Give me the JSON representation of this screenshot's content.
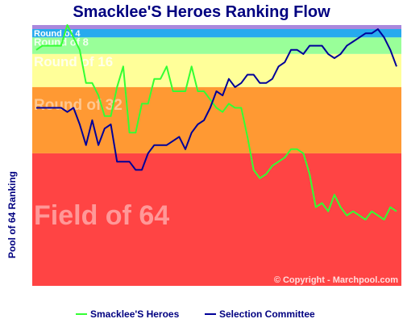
{
  "title": "Smacklee'S Heroes Ranking Flow",
  "ylabel": "Pool of 64 Ranking",
  "copyright": "© Copyright - Marchpool.com",
  "legend": [
    {
      "name": "Smacklee'S Heroes",
      "color": "#33ff33"
    },
    {
      "name": "Selection Committee",
      "color": "#000099"
    }
  ],
  "bands": [
    {
      "label": "Round of 4",
      "from": 1,
      "to": 4,
      "color": "#27aaee"
    },
    {
      "label": "Round of 8",
      "from": 4,
      "to": 8,
      "color": "#99ff99"
    },
    {
      "label": "Round of 16",
      "from": 8,
      "to": 16,
      "color": "#ffff99"
    },
    {
      "label": "Round of 32",
      "from": 16,
      "to": 32,
      "color": "#ff9933"
    },
    {
      "label": "Field of 64",
      "from": 32,
      "to": 64,
      "color": "#ff4444"
    }
  ],
  "chart_data": {
    "type": "line",
    "title": "Smacklee'S Heroes Ranking Flow",
    "xlabel": "",
    "ylabel": "Pool of 64 Ranking",
    "ylim": [
      64,
      1
    ],
    "y_inverted": true,
    "grid": false,
    "legend_position": "bottom",
    "series": [
      {
        "name": "Smacklee'S Heroes",
        "color": "#33ff33",
        "values": [
          7,
          6,
          6,
          6,
          6,
          1,
          4,
          7,
          15,
          15,
          18,
          23,
          23,
          16,
          11,
          27,
          27,
          20,
          20,
          14,
          14,
          11,
          17,
          17,
          17,
          11,
          17,
          17,
          19,
          21,
          22,
          20,
          21,
          21,
          28,
          36,
          38,
          37,
          35,
          34,
          33,
          31,
          31,
          32,
          37,
          45,
          44,
          46,
          42,
          45,
          47,
          46,
          47,
          48,
          46,
          47,
          48,
          45,
          46
        ]
      },
      {
        "name": "Selection Committee",
        "color": "#000099",
        "values": [
          21,
          21,
          21,
          21,
          21,
          22,
          21,
          25,
          30,
          24,
          30,
          26,
          25,
          34,
          34,
          34,
          36,
          36,
          32,
          30,
          30,
          30,
          29,
          28,
          31,
          27,
          25,
          24,
          21,
          17,
          18,
          14,
          16,
          15,
          13,
          13,
          15,
          15,
          14,
          11,
          10,
          7,
          7,
          8,
          6,
          6,
          6,
          8,
          9,
          8,
          6,
          5,
          4,
          3,
          3,
          2,
          4,
          7,
          11
        ]
      }
    ]
  }
}
